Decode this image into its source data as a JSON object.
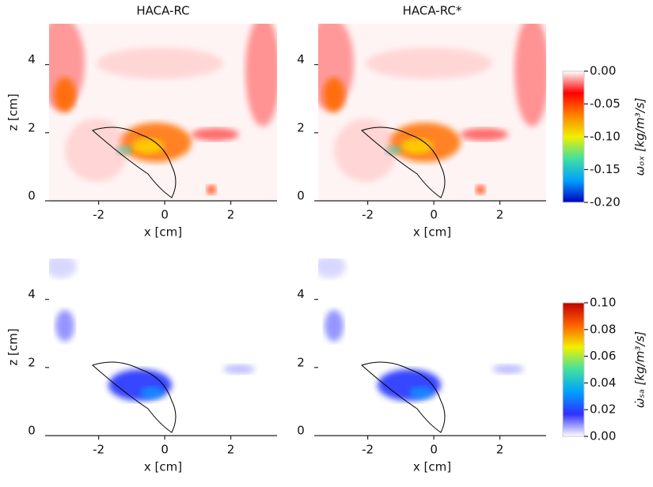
{
  "chart_data": [
    {
      "type": "contour",
      "title": "HACA-RC",
      "xlabel": "x [cm]",
      "ylabel": "z [cm]",
      "xlim": [
        -3.5,
        3.4
      ],
      "ylim": [
        0,
        5.2
      ],
      "xticks": [
        -2,
        0,
        2
      ],
      "yticks": [
        0,
        2,
        4
      ]
    },
    {
      "type": "contour",
      "title": "HACA-RC*",
      "xlabel": "x [cm]",
      "xlim": [
        -3.5,
        3.4
      ],
      "ylim": [
        0,
        5.2
      ],
      "xticks": [
        -2,
        0,
        2
      ],
      "yticks": [
        0,
        2,
        4
      ],
      "colorbar": {
        "label": "ωₒₓ [kg/m³/s]",
        "clim": [
          -0.2,
          0
        ],
        "colors": [
          "#0000c0",
          "#00a0ff",
          "#40e0a0",
          "#f0f000",
          "#ff8000",
          "#ff0000",
          "#ffffff"
        ],
        "ticks": [
          {
            "value": 0,
            "label": "0.00"
          },
          {
            "value": -0.05,
            "label": "-0.05"
          },
          {
            "value": -0.1,
            "label": "-0.10"
          },
          {
            "value": -0.15,
            "label": "-0.15"
          },
          {
            "value": -0.2,
            "label": "-0.20"
          }
        ]
      }
    },
    {
      "type": "contour",
      "xlabel": "x [cm]",
      "ylabel": "z [cm]",
      "xlim": [
        -3.5,
        3.4
      ],
      "ylim": [
        0,
        5.2
      ],
      "xticks": [
        -2,
        0,
        2
      ],
      "yticks": [
        0,
        2,
        4
      ]
    },
    {
      "type": "contour",
      "xlabel": "x [cm]",
      "xlim": [
        -3.5,
        3.4
      ],
      "ylim": [
        0,
        5.2
      ],
      "xticks": [
        -2,
        0,
        2
      ],
      "yticks": [
        0,
        2,
        4
      ],
      "colorbar": {
        "label": "ω̇ₛₐ [kg/m³/s]",
        "clim": [
          0,
          0.1
        ],
        "colors": [
          "#ffffff",
          "#3030ff",
          "#00a0ff",
          "#40e0a0",
          "#f0f000",
          "#ff6000",
          "#c00000"
        ],
        "ticks": [
          {
            "value": 0,
            "label": "0.00"
          },
          {
            "value": 0.02,
            "label": "0.02"
          },
          {
            "value": 0.04,
            "label": "0.04"
          },
          {
            "value": 0.06,
            "label": "0.06"
          },
          {
            "value": 0.08,
            "label": "0.08"
          },
          {
            "value": 0.1,
            "label": "0.10"
          }
        ]
      }
    }
  ]
}
